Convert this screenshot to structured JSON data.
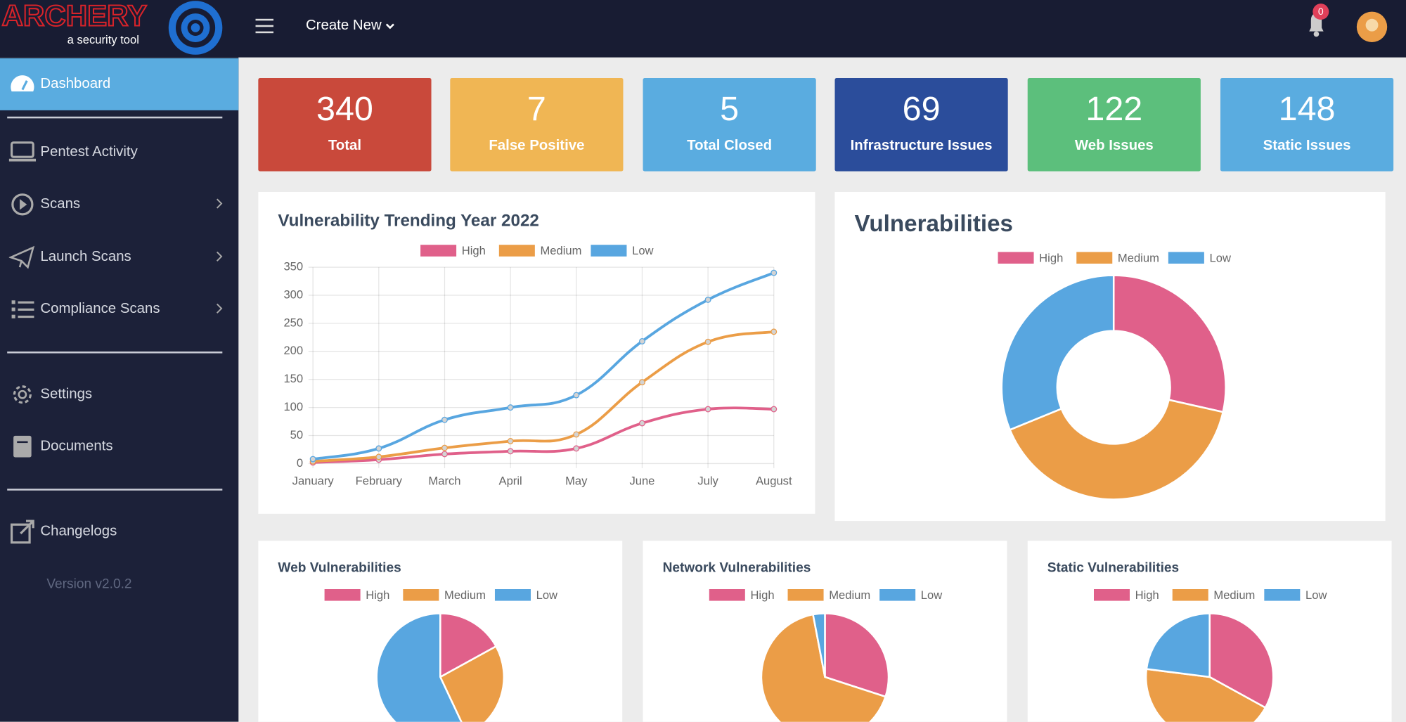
{
  "header": {
    "logo_title": "ARCHERY",
    "logo_subtitle": "a security tool",
    "create_new": "Create New",
    "notification_count": 0
  },
  "sidebar": {
    "items": [
      "Dashboard",
      "Pentest Activity",
      "Scans",
      "Launch Scans",
      "Compliance Scans",
      "Settings",
      "Documents",
      "Changelogs"
    ],
    "version": "Version v2.0.2"
  },
  "stats": [
    {
      "value": 340,
      "label": "Total",
      "color": "#c9493b"
    },
    {
      "value": 7,
      "label": "False Positive",
      "color": "#f0b654"
    },
    {
      "value": 5,
      "label": "Total Closed",
      "color": "#5aace0"
    },
    {
      "value": 69,
      "label": "Infrastructure Issues",
      "color": "#2b4d9b"
    },
    {
      "value": 122,
      "label": "Web Issues",
      "color": "#5cbf7c"
    },
    {
      "value": 148,
      "label": "Static Issues",
      "color": "#5aace0"
    }
  ],
  "chart_data": [
    {
      "type": "line",
      "title": "Vulnerability Trending Year 2022",
      "categories": [
        "January",
        "February",
        "March",
        "April",
        "May",
        "June",
        "July",
        "August"
      ],
      "series": [
        {
          "name": "High",
          "color": "#e0608a",
          "values": [
            2,
            7,
            17,
            22,
            27,
            72,
            97,
            97
          ]
        },
        {
          "name": "Medium",
          "color": "#eb9d47",
          "values": [
            4,
            12,
            28,
            40,
            52,
            145,
            217,
            235
          ]
        },
        {
          "name": "Low",
          "color": "#58a6e0",
          "values": [
            8,
            27,
            78,
            100,
            122,
            218,
            292,
            340
          ]
        }
      ],
      "ylim": [
        0,
        350
      ],
      "yticks": [
        0,
        50,
        100,
        150,
        200,
        250,
        300,
        350
      ],
      "grid": true
    },
    {
      "type": "doughnut",
      "title": "Vulnerabilities",
      "categories": [
        "High",
        "Medium",
        "Low"
      ],
      "values": [
        97,
        137,
        106
      ],
      "colors": [
        "#e0608a",
        "#eb9d47",
        "#58a6e0"
      ]
    },
    {
      "type": "pie",
      "title": "Web Vulnerabilities",
      "categories": [
        "High",
        "Medium",
        "Low"
      ],
      "values": [
        17,
        26,
        57
      ],
      "colors": [
        "#e0608a",
        "#eb9d47",
        "#58a6e0"
      ]
    },
    {
      "type": "pie",
      "title": "Network Vulnerabilities",
      "categories": [
        "High",
        "Medium",
        "Low"
      ],
      "values": [
        30,
        67,
        3
      ],
      "colors": [
        "#e0608a",
        "#eb9d47",
        "#58a6e0"
      ]
    },
    {
      "type": "pie",
      "title": "Static Vulnerabilities",
      "categories": [
        "High",
        "Medium",
        "Low"
      ],
      "values": [
        33,
        44,
        23
      ],
      "colors": [
        "#e0608a",
        "#eb9d47",
        "#58a6e0"
      ]
    }
  ]
}
